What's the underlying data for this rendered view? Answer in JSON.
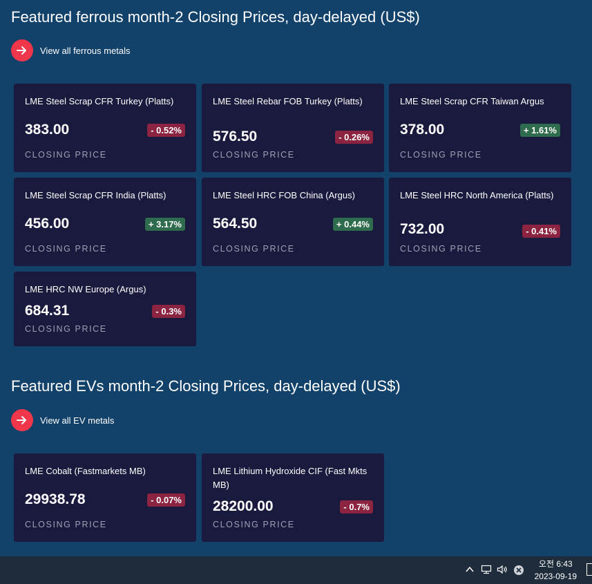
{
  "ferrous": {
    "title": "Featured ferrous month-2 Closing Prices, day-delayed (US$)",
    "link_label": "View all ferrous metals",
    "cards": [
      {
        "name": "LME Steel Scrap CFR Turkey (Platts)",
        "value": "383.00",
        "change": "- 0.52%",
        "direction": "down",
        "label": "CLOSING PRICE"
      },
      {
        "name": "LME Steel Rebar FOB Turkey (Platts)",
        "value": "576.50",
        "change": "- 0.26%",
        "direction": "down",
        "label": "CLOSING PRICE"
      },
      {
        "name": "LME Steel Scrap CFR Taiwan Argus",
        "value": "378.00",
        "change": "+ 1.61%",
        "direction": "up",
        "label": "CLOSING PRICE"
      },
      {
        "name": "LME Steel Scrap CFR India (Platts)",
        "value": "456.00",
        "change": "+ 3.17%",
        "direction": "up",
        "label": "CLOSING PRICE"
      },
      {
        "name": "LME Steel HRC FOB China (Argus)",
        "value": "564.50",
        "change": "+ 0.44%",
        "direction": "up",
        "label": "CLOSING PRICE"
      },
      {
        "name": "LME Steel HRC North America (Platts)",
        "value": "732.00",
        "change": "- 0.41%",
        "direction": "down",
        "label": "CLOSING PRICE"
      },
      {
        "name": "LME HRC NW Europe (Argus)",
        "value": "684.31",
        "change": "- 0.3%",
        "direction": "down",
        "label": "CLOSING PRICE"
      }
    ]
  },
  "ev": {
    "title": "Featured EVs month-2 Closing Prices, day-delayed (US$)",
    "link_label": "View all EV metals",
    "cards": [
      {
        "name": "LME Cobalt (Fastmarkets MB)",
        "value": "29938.78",
        "change": "- 0.07%",
        "direction": "down",
        "label": "CLOSING PRICE"
      },
      {
        "name": "LME Lithium Hydroxide CIF (Fast Mkts MB)",
        "value": "28200.00",
        "change": "- 0.7%",
        "direction": "down",
        "label": "CLOSING PRICE"
      }
    ]
  },
  "colors": {
    "background": "#12416a",
    "card": "#191a3e",
    "accent": "#f0364b",
    "negative": "#8c2340",
    "positive": "#2f6b4d"
  },
  "taskbar": {
    "time": "오전 6:43",
    "date": "2023-09-19",
    "icons": [
      "chevron-up-icon",
      "network-icon",
      "volume-icon",
      "close-circle-icon"
    ]
  }
}
